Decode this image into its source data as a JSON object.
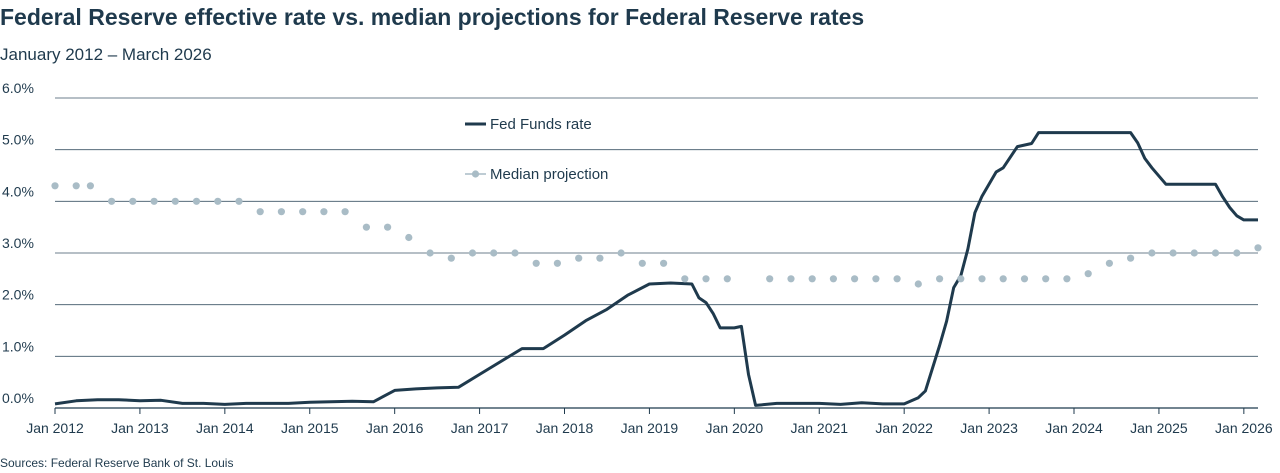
{
  "chart_data": {
    "type": "line",
    "title": "Federal Reserve effective rate vs. median projections for Federal Reserve rates",
    "subtitle": "January 2012 – March 2026",
    "source": "Sources: Federal Reserve Bank of St. Louis",
    "ylim": [
      0,
      6
    ],
    "xlim": [
      "2012-01",
      "2026-03"
    ],
    "y_ticks": [
      {
        "value": 0,
        "label": "0.0%"
      },
      {
        "value": 1,
        "label": "1.0%"
      },
      {
        "value": 2,
        "label": "2.0%"
      },
      {
        "value": 3,
        "label": "3.0%"
      },
      {
        "value": 4,
        "label": "4.0%"
      },
      {
        "value": 5,
        "label": "5.0%"
      },
      {
        "value": 6,
        "label": "6.0%"
      }
    ],
    "x_ticks": [
      {
        "value": "2012-01",
        "label": "Jan 2012"
      },
      {
        "value": "2013-01",
        "label": "Jan 2013"
      },
      {
        "value": "2014-01",
        "label": "Jan 2014"
      },
      {
        "value": "2015-01",
        "label": "Jan 2015"
      },
      {
        "value": "2016-01",
        "label": "Jan 2016"
      },
      {
        "value": "2017-01",
        "label": "Jan 2017"
      },
      {
        "value": "2018-01",
        "label": "Jan 2018"
      },
      {
        "value": "2019-01",
        "label": "Jan 2019"
      },
      {
        "value": "2020-01",
        "label": "Jan 2020"
      },
      {
        "value": "2021-01",
        "label": "Jan 2021"
      },
      {
        "value": "2022-01",
        "label": "Jan 2022"
      },
      {
        "value": "2023-01",
        "label": "Jan 2023"
      },
      {
        "value": "2024-01",
        "label": "Jan 2024"
      },
      {
        "value": "2025-01",
        "label": "Jan 2025"
      },
      {
        "value": "2026-01",
        "label": "Jan 2026"
      }
    ],
    "grid": "horizontal",
    "legend_position": "top-center",
    "series": [
      {
        "name": "Fed Funds rate",
        "style": "line",
        "color": "#1f3a4d",
        "points": [
          [
            "2012-01",
            0.08
          ],
          [
            "2012-04",
            0.14
          ],
          [
            "2012-07",
            0.16
          ],
          [
            "2012-10",
            0.16
          ],
          [
            "2013-01",
            0.14
          ],
          [
            "2013-04",
            0.15
          ],
          [
            "2013-07",
            0.09
          ],
          [
            "2013-10",
            0.09
          ],
          [
            "2014-01",
            0.07
          ],
          [
            "2014-04",
            0.09
          ],
          [
            "2014-07",
            0.09
          ],
          [
            "2014-10",
            0.09
          ],
          [
            "2015-01",
            0.11
          ],
          [
            "2015-04",
            0.12
          ],
          [
            "2015-07",
            0.13
          ],
          [
            "2015-10",
            0.12
          ],
          [
            "2016-01",
            0.34
          ],
          [
            "2016-04",
            0.37
          ],
          [
            "2016-07",
            0.39
          ],
          [
            "2016-10",
            0.4
          ],
          [
            "2017-01",
            0.65
          ],
          [
            "2017-04",
            0.9
          ],
          [
            "2017-07",
            1.15
          ],
          [
            "2017-10",
            1.15
          ],
          [
            "2018-01",
            1.41
          ],
          [
            "2018-04",
            1.69
          ],
          [
            "2018-07",
            1.91
          ],
          [
            "2018-10",
            2.19
          ],
          [
            "2019-01",
            2.4
          ],
          [
            "2019-04",
            2.42
          ],
          [
            "2019-07",
            2.4
          ],
          [
            "2019-08",
            2.13
          ],
          [
            "2019-09",
            2.04
          ],
          [
            "2019-10",
            1.83
          ],
          [
            "2019-11",
            1.55
          ],
          [
            "2019-12",
            1.55
          ],
          [
            "2020-01",
            1.55
          ],
          [
            "2020-02",
            1.58
          ],
          [
            "2020-03",
            0.65
          ],
          [
            "2020-04",
            0.05
          ],
          [
            "2020-07",
            0.09
          ],
          [
            "2020-10",
            0.09
          ],
          [
            "2021-01",
            0.09
          ],
          [
            "2021-04",
            0.07
          ],
          [
            "2021-07",
            0.1
          ],
          [
            "2021-10",
            0.08
          ],
          [
            "2022-01",
            0.08
          ],
          [
            "2022-03",
            0.2
          ],
          [
            "2022-04",
            0.33
          ],
          [
            "2022-05",
            0.77
          ],
          [
            "2022-06",
            1.21
          ],
          [
            "2022-07",
            1.68
          ],
          [
            "2022-08",
            2.33
          ],
          [
            "2022-09",
            2.56
          ],
          [
            "2022-10",
            3.08
          ],
          [
            "2022-11",
            3.78
          ],
          [
            "2022-12",
            4.1
          ],
          [
            "2023-02",
            4.57
          ],
          [
            "2023-03",
            4.65
          ],
          [
            "2023-05",
            5.06
          ],
          [
            "2023-07",
            5.12
          ],
          [
            "2023-08",
            5.33
          ],
          [
            "2023-12",
            5.33
          ],
          [
            "2024-06",
            5.33
          ],
          [
            "2024-09",
            5.33
          ],
          [
            "2024-10",
            5.13
          ],
          [
            "2024-11",
            4.83
          ],
          [
            "2024-12",
            4.65
          ],
          [
            "2025-02",
            4.33
          ],
          [
            "2025-06",
            4.33
          ],
          [
            "2025-09",
            4.33
          ],
          [
            "2025-10",
            4.09
          ],
          [
            "2025-11",
            3.88
          ],
          [
            "2025-12",
            3.72
          ],
          [
            "2026-01",
            3.64
          ],
          [
            "2026-03",
            3.64
          ]
        ]
      },
      {
        "name": "Median projection",
        "style": "dots",
        "color": "#a9bcc6",
        "points": [
          [
            "2012-01",
            4.3
          ],
          [
            "2012-04",
            4.3
          ],
          [
            "2012-06",
            4.3
          ],
          [
            "2012-09",
            4.0
          ],
          [
            "2012-12",
            4.0
          ],
          [
            "2013-03",
            4.0
          ],
          [
            "2013-06",
            4.0
          ],
          [
            "2013-09",
            4.0
          ],
          [
            "2013-12",
            4.0
          ],
          [
            "2014-03",
            4.0
          ],
          [
            "2014-06",
            3.8
          ],
          [
            "2014-09",
            3.8
          ],
          [
            "2014-12",
            3.8
          ],
          [
            "2015-03",
            3.8
          ],
          [
            "2015-06",
            3.8
          ],
          [
            "2015-09",
            3.5
          ],
          [
            "2015-12",
            3.5
          ],
          [
            "2016-03",
            3.3
          ],
          [
            "2016-06",
            3.0
          ],
          [
            "2016-09",
            2.9
          ],
          [
            "2016-12",
            3.0
          ],
          [
            "2017-03",
            3.0
          ],
          [
            "2017-06",
            3.0
          ],
          [
            "2017-09",
            2.8
          ],
          [
            "2017-12",
            2.8
          ],
          [
            "2018-03",
            2.9
          ],
          [
            "2018-06",
            2.9
          ],
          [
            "2018-09",
            3.0
          ],
          [
            "2018-12",
            2.8
          ],
          [
            "2019-03",
            2.8
          ],
          [
            "2019-06",
            2.5
          ],
          [
            "2019-09",
            2.5
          ],
          [
            "2019-12",
            2.5
          ],
          [
            "2020-06",
            2.5
          ],
          [
            "2020-09",
            2.5
          ],
          [
            "2020-12",
            2.5
          ],
          [
            "2021-03",
            2.5
          ],
          [
            "2021-06",
            2.5
          ],
          [
            "2021-09",
            2.5
          ],
          [
            "2021-12",
            2.5
          ],
          [
            "2022-03",
            2.4
          ],
          [
            "2022-06",
            2.5
          ],
          [
            "2022-09",
            2.5
          ],
          [
            "2022-12",
            2.5
          ],
          [
            "2023-03",
            2.5
          ],
          [
            "2023-06",
            2.5
          ],
          [
            "2023-09",
            2.5
          ],
          [
            "2023-12",
            2.5
          ],
          [
            "2024-03",
            2.6
          ],
          [
            "2024-06",
            2.8
          ],
          [
            "2024-09",
            2.9
          ],
          [
            "2024-12",
            3.0
          ],
          [
            "2025-03",
            3.0
          ],
          [
            "2025-06",
            3.0
          ],
          [
            "2025-09",
            3.0
          ],
          [
            "2025-12",
            3.0
          ],
          [
            "2026-03",
            3.1
          ]
        ]
      }
    ]
  }
}
